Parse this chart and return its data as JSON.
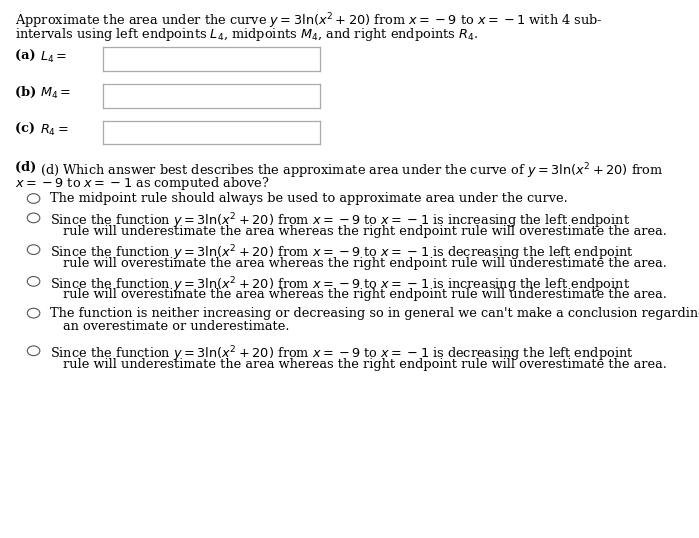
{
  "bg_color": "#ffffff",
  "text_color": "#000000",
  "fig_width": 6.99,
  "fig_height": 5.38,
  "dpi": 100,
  "font_size": 9.3,
  "line1": "Approximate the area under the curve $y = 3\\ln(x^2 + 20)$ from $x = -9$ to $x = -1$ with 4 sub-",
  "line2": "intervals using left endpoints $L_4$, midpoints $M_4$, and right endpoints $R_4$.",
  "label_a": "(a) $L_4 =$",
  "label_b": "(b) $M_4 =$",
  "label_c": "(c) $R_4 =$",
  "d_line1": "(d) Which answer best describes the approximate area under the curve of $y = 3\\ln(x^2 + 20)$ from",
  "d_line2": "$x = -9$ to $x = -1$ as computed above?",
  "opt1": "The midpoint rule should always be used to approximate area under the curve.",
  "opt2a": "Since the function $y = 3\\ln(x^2 + 20)$ from $x = -9$ to $x = -1$ is increasing the left endpoint",
  "opt2b": "rule will underestimate the area whereas the right endpoint rule will overestimate the area.",
  "opt3a": "Since the function $y = 3\\ln(x^2 + 20)$ from $x = -9$ to $x = -1$ is decreasing the left endpoint",
  "opt3b": "rule will overestimate the area whereas the right endpoint rule will underestimate the area.",
  "opt4a": "Since the function $y = 3\\ln(x^2 + 20)$ from $x = -9$ to $x = -1$ is increasing the left endpoint",
  "opt4b": "rule will overestimate the area whereas the right endpoint rule will underestimate the area.",
  "opt5a": "The function is neither increasing or decreasing so in general we can't make a conclusion regarding",
  "opt5b": "an overestimate or underestimate.",
  "opt6a": "Since the function $y = 3\\ln(x^2 + 20)$ from $x = -9$ to $x = -1$ is decreasing the left endpoint",
  "opt6b": "rule will underestimate the area whereas the right endpoint rule will overestimate the area.",
  "box_color": "#aaaaaa",
  "circle_color": "#555555",
  "bold_labels": [
    "(a)",
    "(b)",
    "(c)",
    "(d)"
  ]
}
